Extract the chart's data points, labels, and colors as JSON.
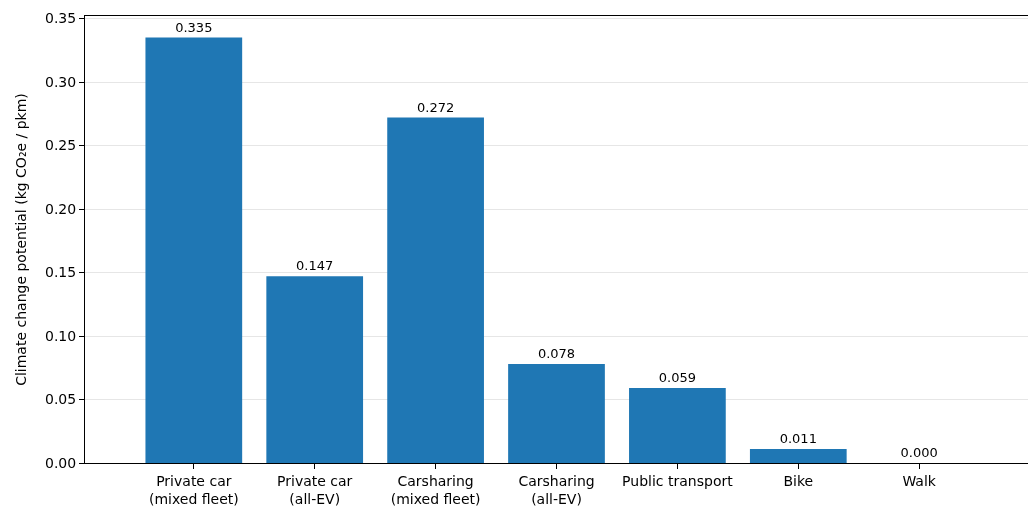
{
  "chart_data": {
    "type": "bar",
    "categories": [
      "Private car\n(mixed fleet)",
      "Private car\n(all-EV)",
      "Carsharing\n(mixed fleet)",
      "Carsharing\n(all-EV)",
      "Public transport",
      "Bike",
      "Walk"
    ],
    "values": [
      0.335,
      0.147,
      0.272,
      0.078,
      0.059,
      0.011,
      0.0
    ],
    "value_labels": [
      "0.335",
      "0.147",
      "0.272",
      "0.078",
      "0.059",
      "0.011",
      "0.000"
    ],
    "color": "#1f77b4",
    "ylabel": "Climate change potential (kg CO₂e / pkm)",
    "ylim": [
      0,
      0.352
    ],
    "yticks": [
      {
        "value": 0,
        "label": "0.00"
      },
      {
        "value": 0.05,
        "label": "0.05"
      },
      {
        "value": 0.1,
        "label": "0.10"
      },
      {
        "value": 0.15,
        "label": "0.15"
      },
      {
        "value": 0.2,
        "label": "0.20"
      },
      {
        "value": 0.25,
        "label": "0.25"
      },
      {
        "value": 0.3,
        "label": "0.30"
      },
      {
        "value": 0.35,
        "label": "0.35"
      }
    ],
    "grid": "y",
    "legend": false
  }
}
